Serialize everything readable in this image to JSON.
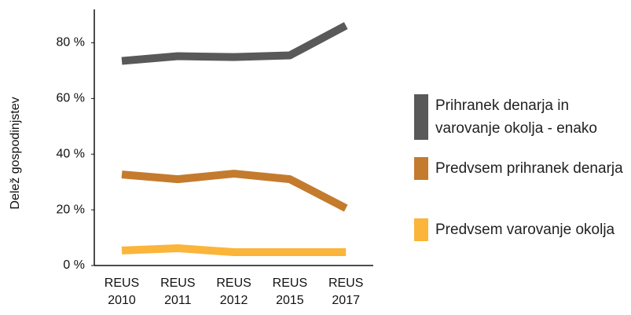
{
  "chart_data": {
    "type": "line",
    "y_label": "Delež gospodinjstev",
    "categories": [
      "REUS 2010",
      "REUS 2011",
      "REUS 2012",
      "REUS 2015",
      "REUS 2017"
    ],
    "series": [
      {
        "name": "Prihranek denarja in varovanje okolja - enako",
        "color": "#595959",
        "values": [
          73.5,
          75.2,
          74.9,
          75.5,
          86.2
        ]
      },
      {
        "name": "Predvsem prihranek denarja",
        "color": "#c47b2e",
        "values": [
          32.7,
          31,
          33,
          31,
          20.6
        ]
      },
      {
        "name": "Predvsem varovanje okolja",
        "color": "#fbb53b",
        "values": [
          5.4,
          6.2,
          4.8,
          4.8,
          4.8
        ]
      }
    ],
    "ylim": [
      0,
      92
    ],
    "yticks": [
      {
        "value": 0,
        "label": "0 %"
      },
      {
        "value": 20,
        "label": "20 %"
      },
      {
        "value": 40,
        "label": "40 %"
      },
      {
        "value": 60,
        "label": "60 %"
      },
      {
        "value": 80,
        "label": "80 %"
      }
    ],
    "legend": "right"
  }
}
